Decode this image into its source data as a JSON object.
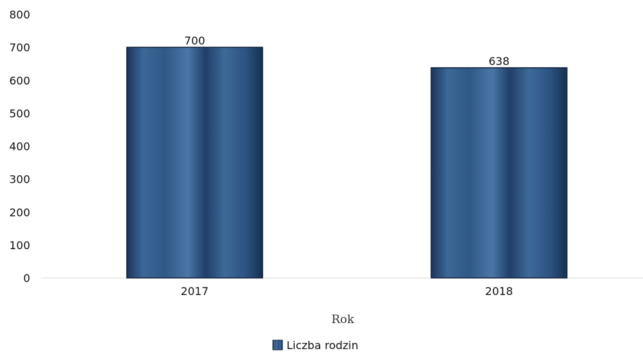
{
  "chart_data": {
    "type": "bar",
    "categories": [
      "2017",
      "2018"
    ],
    "series": [
      {
        "name": "Liczba rodzin",
        "values": [
          700,
          638
        ]
      }
    ],
    "title": "",
    "xlabel": "Rok",
    "ylabel": "",
    "ylim": [
      0,
      800
    ],
    "yticks": [
      0,
      100,
      200,
      300,
      400,
      500,
      600,
      700,
      800
    ],
    "grid": false,
    "data_labels": true,
    "legend_position": "bottom-center",
    "bar_color": "#2a4d78",
    "bar_edge_color": "#0e1f38"
  }
}
